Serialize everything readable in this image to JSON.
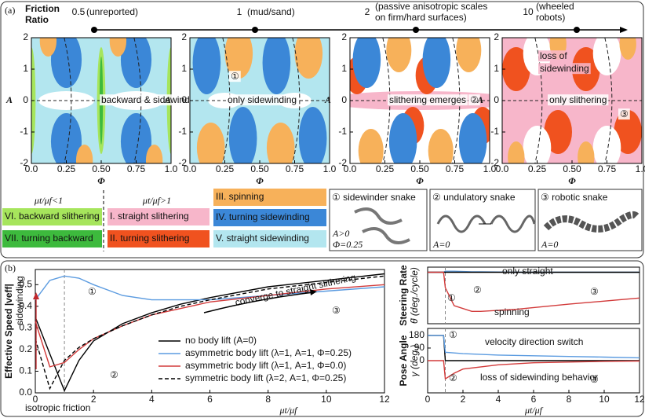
{
  "figure": {
    "panel_a": {
      "label": "(a)",
      "axis_title": [
        "Friction",
        "Ratio"
      ],
      "axis_label": "μt/μf",
      "ratios": [
        {
          "value": "0.5",
          "note": [
            "(unreported)"
          ]
        },
        {
          "value": "1",
          "note": [
            "(mud/sand)"
          ]
        },
        {
          "value": "2",
          "note": [
            "(passive anisotropic scales",
            "on firm/hard surfaces)"
          ]
        },
        {
          "value": "10",
          "note": [
            "(wheeled",
            "robots)"
          ]
        }
      ],
      "maps": [
        {
          "labels": [
            "backward & sidewinding"
          ]
        },
        {
          "labels": [
            "①",
            "only sidewinding"
          ]
        },
        {
          "labels": [
            "slithering emerges",
            "②"
          ]
        },
        {
          "labels": [
            "loss of",
            "sidewinding",
            "only slithering",
            "③"
          ]
        }
      ],
      "y_label": "A",
      "x_label": "Φ",
      "y_ticks": [
        "2",
        "1",
        "0",
        "-1",
        "-2"
      ],
      "x_ticks": [
        "0.0",
        "0.25",
        "0.50",
        "0.75",
        "1.0"
      ]
    },
    "legend": {
      "groups": [
        "μt/μf<1",
        "μt/μf>1"
      ],
      "items": [
        {
          "text": "VI. backward slithering",
          "color": "#a6e55c"
        },
        {
          "text": "VII. turning backward",
          "color": "#3dba3d"
        },
        {
          "text": "I. straight slithering",
          "color": "#f7b6ca"
        },
        {
          "text": "II. turning slithering",
          "color": "#f0521f"
        },
        {
          "text": "III. spinning",
          "color": "#f7b15a"
        },
        {
          "text": "IV. turning sidewinding",
          "color": "#3b87d7"
        },
        {
          "text": "V. straight sidewinding",
          "color": "#b3e6ef"
        }
      ]
    },
    "snakes": [
      {
        "title": "① sidewinder snake",
        "params": [
          "A>0",
          "Φ=0.25"
        ]
      },
      {
        "title": "② undulatory snake",
        "params": [
          "A=0"
        ]
      },
      {
        "title": "③ robotic snake",
        "params": [
          "A=0"
        ]
      }
    ],
    "panel_b_label": "(b)"
  },
  "chart_data": [
    {
      "type": "line",
      "y_label": "Effective Speed |veff|",
      "x_label": "μt/μf",
      "xlim": [
        0,
        12
      ],
      "ylim": [
        0,
        0.57
      ],
      "xticks": [
        0,
        2,
        4,
        6,
        8,
        10,
        12
      ],
      "yticks": [
        {
          "value": 0,
          "label": "0.0"
        },
        0.1,
        0.2,
        0.3,
        0.4,
        0.5
      ],
      "reference_x": 1,
      "x": [
        0,
        0.5,
        1,
        1.5,
        2,
        3,
        4,
        5,
        6,
        8,
        10,
        12
      ],
      "series": [
        {
          "name": "no body lift (A=0)",
          "color": "#000000",
          "dash": false,
          "values": [
            0.35,
            0.18,
            0.01,
            0.15,
            0.24,
            0.32,
            0.37,
            0.41,
            0.44,
            0.49,
            0.52,
            0.55
          ]
        },
        {
          "name": "asymmetric body lift (λ=1, A=1, Φ=0.25)",
          "color": "#5b9be0",
          "dash": false,
          "values": [
            0.43,
            0.52,
            0.54,
            0.53,
            0.5,
            0.45,
            0.43,
            0.43,
            0.43,
            0.45,
            0.47,
            0.49
          ]
        },
        {
          "name": "asymmetric body lift (λ=1, A=1, Φ=0.0)",
          "color": "#d23a3a",
          "dash": false,
          "values": [
            0.33,
            0.12,
            0.14,
            0.2,
            0.25,
            0.31,
            0.36,
            0.39,
            0.42,
            0.45,
            0.48,
            0.5
          ]
        },
        {
          "name": "symmetric body lift (λ=2, A=1, Φ=0.25)",
          "color": "#000000",
          "dash": true,
          "values": [
            0.25,
            0.02,
            0.15,
            0.21,
            0.25,
            0.31,
            0.36,
            0.4,
            0.43,
            0.48,
            0.51,
            0.54
          ]
        }
      ],
      "annotations": [
        "converge to straight slithering",
        "sidewinding",
        "isotropic friction",
        "①",
        "②",
        "③"
      ]
    },
    {
      "type": "line",
      "y_label": [
        "Steering Rate",
        "θ̇ (deg./cycle)"
      ],
      "xlim": [
        0,
        12
      ],
      "ylim": [
        -1,
        0.1
      ],
      "reference_x": 1,
      "x": [
        0,
        0.9,
        1,
        1.5,
        2.5,
        3,
        5,
        8,
        12
      ],
      "series": [
        {
          "name": "turning sidewinding",
          "color": "#5b9be0",
          "dash": false,
          "values": [
            0,
            0,
            0.02,
            0.02,
            0.01,
            0.01,
            0,
            0,
            0
          ]
        },
        {
          "name": "straight",
          "color": "#000000",
          "dash": false,
          "values": [
            0,
            0,
            0,
            0,
            0,
            0,
            0,
            0,
            0
          ]
        },
        {
          "name": "spinning",
          "color": "#d23a3a",
          "dash": false,
          "values": [
            0,
            0,
            -0.3,
            -0.65,
            -0.76,
            -0.76,
            -0.72,
            -0.62,
            -0.5
          ]
        }
      ],
      "annotations": [
        "only straight",
        "spinning",
        "①",
        "②",
        "③"
      ]
    },
    {
      "type": "line",
      "y_label": [
        "Pose Angle",
        "γ (deg.)"
      ],
      "x_label": "μt/μf",
      "xlim": [
        0,
        12
      ],
      "ylim": [
        -230,
        230
      ],
      "xticks": [
        0,
        2,
        4,
        6,
        8,
        10,
        12
      ],
      "yticks": [
        0,
        90,
        180
      ],
      "reference_x": 1,
      "x": [
        0,
        0.9,
        1,
        1.5,
        2,
        4,
        6,
        8,
        10,
        12
      ],
      "series": [
        {
          "name": "no body lift",
          "color": "#000000",
          "dash": false,
          "values": [
            180,
            180,
            0,
            0,
            0,
            0,
            0,
            0,
            0,
            0
          ]
        },
        {
          "name": "asymmetric Φ=0.25",
          "color": "#5b9be0",
          "dash": false,
          "values": [
            180,
            180,
            60,
            55,
            50,
            40,
            35,
            30,
            25,
            20
          ]
        },
        {
          "name": "asymmetric Φ=0.0",
          "color": "#d23a3a",
          "dash": false,
          "values": [
            0,
            0,
            -130,
            -90,
            -60,
            -30,
            -15,
            -10,
            -5,
            -3
          ]
        }
      ],
      "annotations": [
        "velocity direction switch",
        "loss of sidewinding behavior",
        "①",
        "②",
        "③"
      ]
    }
  ]
}
